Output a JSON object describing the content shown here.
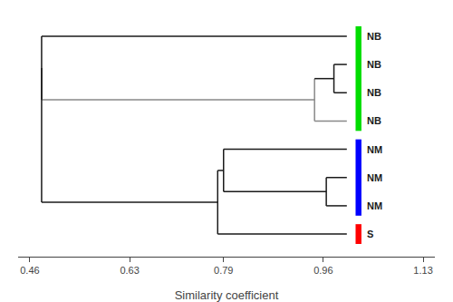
{
  "chart_data": {
    "type": "dendrogram",
    "categories": [
      "NB",
      "NB",
      "NB",
      "NB",
      "NM",
      "NM",
      "NM",
      "S"
    ],
    "colors": [
      "#00dd00",
      "#00dd00",
      "#00dd00",
      "#00dd00",
      "#0000ff",
      "#0000ff",
      "#0000ff",
      "#ff0000"
    ],
    "leaf_x": 1.0,
    "leaf_line_colors": [
      "#1a1a1a",
      "#1a1a1a",
      "#1a1a1a",
      "#888888",
      "#1a1a1a",
      "#1a1a1a",
      "#1a1a1a",
      "#1a1a1a"
    ],
    "merges": [
      {
        "left": 1,
        "right": 2,
        "x": 0.978,
        "color": "#1a1a1a"
      },
      {
        "left": 8,
        "right": 3,
        "x": 0.945,
        "color": "#888888"
      },
      {
        "left": 0,
        "right": 9,
        "x": 0.48,
        "color": "#1a1a1a"
      },
      {
        "left": 5,
        "right": 6,
        "x": 0.965,
        "color": "#1a1a1a"
      },
      {
        "left": 4,
        "right": 11,
        "x": 0.79,
        "color": "#1a1a1a"
      },
      {
        "left": 12,
        "right": 7,
        "x": 0.78,
        "color": "#1a1a1a"
      },
      {
        "left": 10,
        "right": 13,
        "x": 0.48,
        "color": "#1a1a1a"
      }
    ],
    "xlabel": "Similarity coefficient",
    "xlim": [
      0.44,
      1.15
    ],
    "xticks": [
      0.46,
      0.63,
      0.79,
      0.96,
      1.13
    ],
    "grid": false,
    "tick_labels": "x",
    "background_color": "#ffffff"
  }
}
